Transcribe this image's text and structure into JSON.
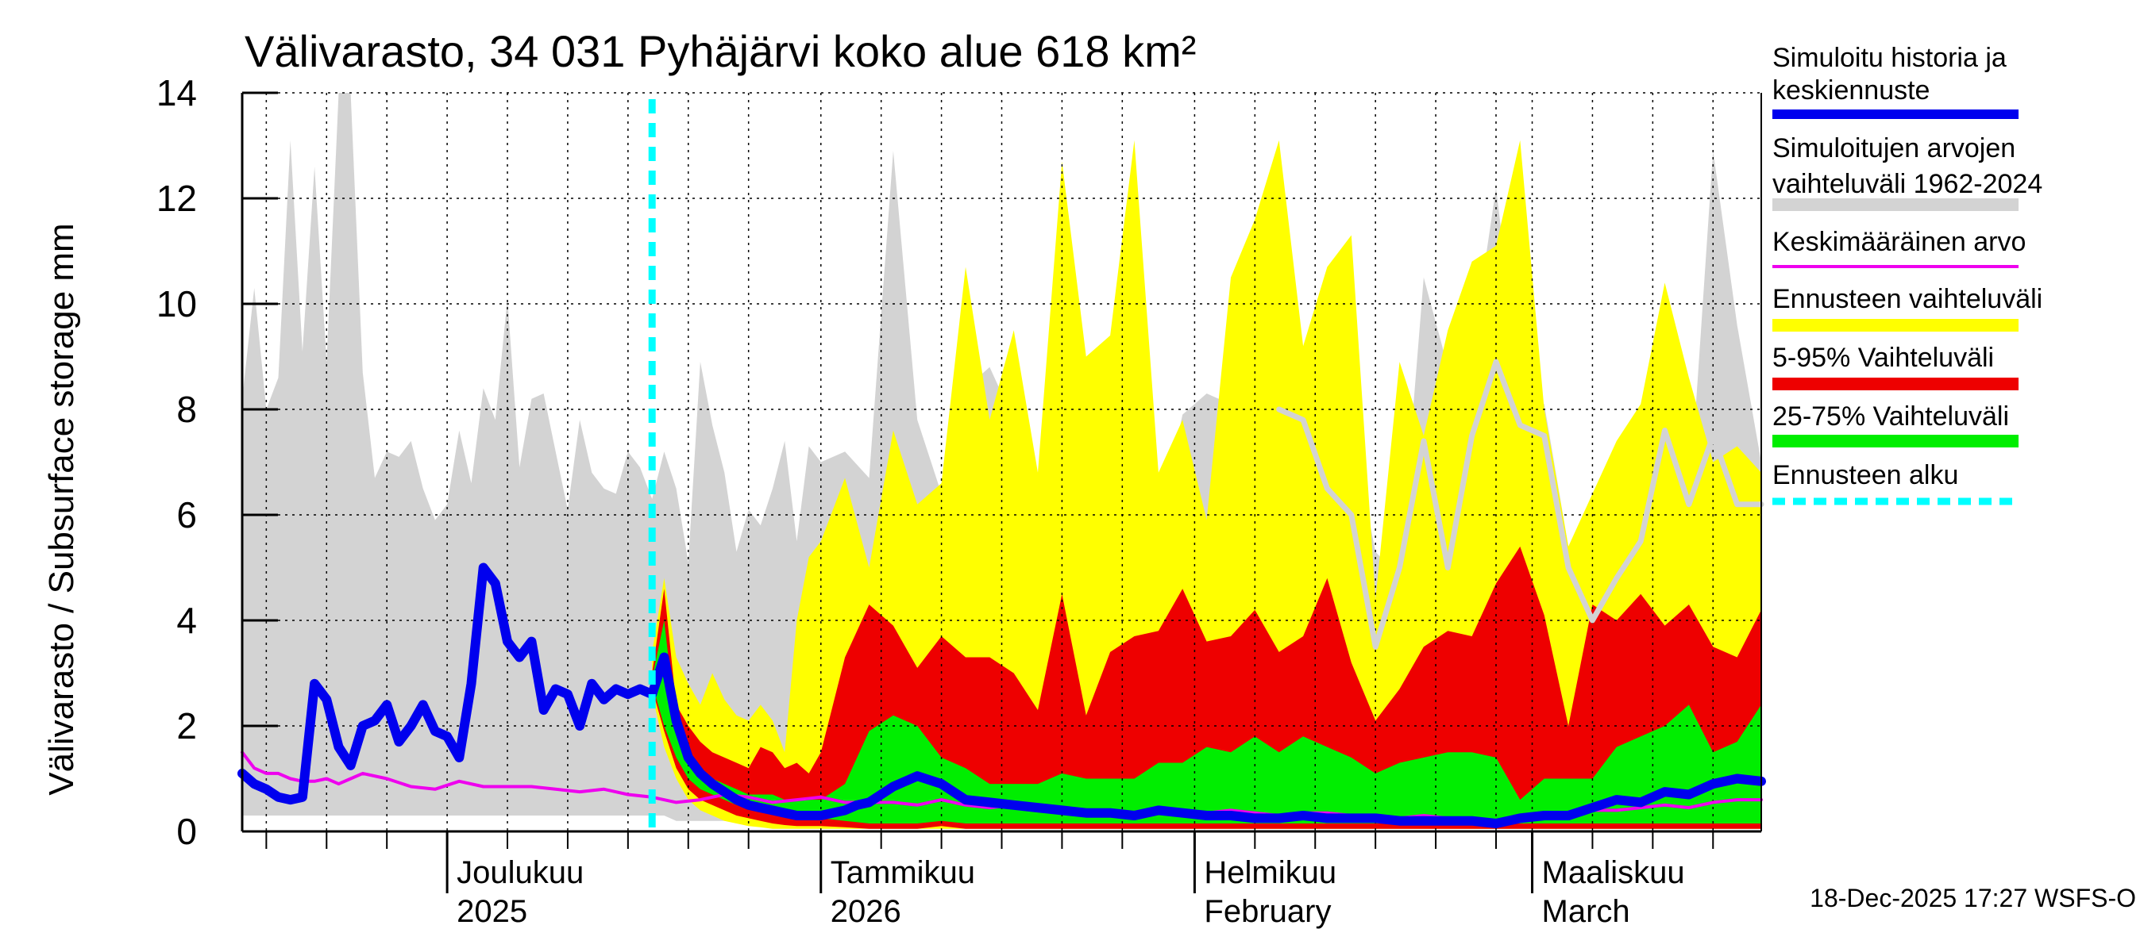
{
  "chart_data": {
    "type": "area",
    "title": "Välivarasto, 34 031 Pyhäjärvi koko alue 618 km²",
    "ylabel": "Välivarasto / Subsurface storage  mm",
    "xlabel": "",
    "ylim": [
      0,
      14
    ],
    "yticks": [
      0,
      2,
      4,
      6,
      8,
      10,
      12,
      14
    ],
    "x_range": [
      0,
      126
    ],
    "x_unit": "days from 2025-11-14",
    "forecast_start_day": 34,
    "grid": "vertical dotted",
    "month_labels": [
      {
        "day": 17,
        "line1": "Joulukuu",
        "line2": "2025"
      },
      {
        "day": 48,
        "line1": "Tammikuu",
        "line2": "2026"
      },
      {
        "day": 79,
        "line1": "Helmikuu",
        "line2": "February"
      },
      {
        "day": 107,
        "line1": "Maaliskuu",
        "line2": "March"
      }
    ],
    "month_boundaries": [
      17,
      48,
      79,
      107
    ],
    "minor_ticks": [
      2,
      7,
      12,
      17,
      22,
      27,
      32,
      37,
      42,
      48,
      53,
      58,
      63,
      68,
      73,
      79,
      84,
      89,
      94,
      99,
      104,
      107,
      112,
      117,
      122
    ],
    "legend": [
      {
        "label": "Simuloitu historia ja",
        "label2": "keskiennuste",
        "color": "#0000ee",
        "kind": "line"
      },
      {
        "label": "Simuloitujen arvojen",
        "label2": "vaihteluväli 1962-2024",
        "color": "#d3d3d3",
        "kind": "band"
      },
      {
        "label": "Keskimääräinen arvo",
        "label2": "",
        "color": "#ee00ee",
        "kind": "line"
      },
      {
        "label": "Ennusteen vaihteluväli",
        "label2": "",
        "color": "#ffff00",
        "kind": "band"
      },
      {
        "label": "5-95% Vaihteluväli",
        "label2": "",
        "color": "#ee0000",
        "kind": "band"
      },
      {
        "label": "25-75% Vaihteluväli",
        "label2": "",
        "color": "#00ee00",
        "kind": "band"
      },
      {
        "label": "Ennusteen alku",
        "label2": "",
        "color": "#00ffff",
        "kind": "dash"
      }
    ],
    "series": {
      "hist_range": {
        "color": "#d3d3d3",
        "x": [
          0,
          1,
          2,
          3,
          4,
          5,
          6,
          7,
          8,
          9,
          10,
          11,
          12,
          13,
          14,
          15,
          16,
          17,
          18,
          19,
          20,
          21,
          22,
          23,
          24,
          25,
          26,
          27,
          28,
          29,
          30,
          31,
          32,
          33,
          34,
          35,
          36,
          37,
          38,
          39,
          40,
          41,
          42,
          43,
          44,
          45,
          46,
          47,
          48,
          50,
          52,
          54,
          56,
          58,
          60,
          62,
          64,
          66,
          68,
          70,
          72,
          74,
          76,
          78,
          80,
          82,
          84,
          86,
          88,
          90,
          92,
          94,
          96,
          98,
          100,
          102,
          104,
          106,
          108,
          110,
          112,
          114,
          116,
          118,
          120,
          122,
          124,
          126
        ],
        "upper": [
          8.2,
          10.3,
          8,
          8.6,
          13.1,
          9.1,
          12.6,
          8.9,
          14,
          14,
          8.7,
          6.7,
          7.2,
          7.1,
          7.4,
          6.5,
          5.9,
          6.2,
          7.6,
          6.6,
          8.4,
          7.8,
          10.1,
          6.9,
          8.2,
          8.3,
          7.2,
          6.1,
          7.8,
          6.8,
          6.5,
          6.4,
          7.2,
          6.9,
          6.3,
          7.2,
          6.5,
          5.1,
          8.9,
          7.7,
          6.8,
          5.3,
          6.1,
          5.8,
          6.5,
          7.4,
          5.5,
          7.3,
          7.0,
          7.2,
          6.7,
          12.9,
          7.8,
          6.4,
          8.4,
          8.8,
          7.8,
          6.5,
          7.0,
          6.5,
          5.4,
          6.2,
          5.8,
          7.9,
          8.3,
          8.1,
          6.1,
          3.8,
          4.9,
          7.4,
          7.6,
          5.3,
          4.8,
          10.5,
          8.8,
          9.1,
          12.2,
          8.4,
          8.1,
          5.4,
          4.8,
          5.6,
          6.8,
          8.4,
          6.1,
          12.9,
          9.6,
          7.0
        ],
        "lower": [
          0.3,
          0.3,
          0.3,
          0.3,
          0.3,
          0.3,
          0.3,
          0.3,
          0.3,
          0.3,
          0.3,
          0.3,
          0.3,
          0.3,
          0.3,
          0.3,
          0.3,
          0.3,
          0.3,
          0.3,
          0.3,
          0.3,
          0.3,
          0.3,
          0.3,
          0.3,
          0.3,
          0.3,
          0.3,
          0.3,
          0.3,
          0.3,
          0.3,
          0.3,
          0.3,
          0.3,
          0.2,
          0.2,
          0.2,
          0.2,
          0.2,
          0.2,
          0.2,
          0.1,
          0.1,
          0.1,
          0.1,
          0.1,
          0.1,
          0.05,
          0.05,
          0.05,
          0.05,
          0.05,
          0.05,
          0.05,
          0.05,
          0.05,
          0.05,
          0.05,
          0.05,
          0.05,
          0.05,
          0.05,
          0.05,
          0.05,
          0.05,
          0.05,
          0.05,
          0.05,
          0.05,
          0.05,
          0.05,
          0.05,
          0.05,
          0.05,
          0.05,
          0.05,
          0.05,
          0.05,
          0.05,
          0.05,
          0.05,
          0.05,
          0.05,
          0.05,
          0.05,
          0.05
        ]
      },
      "hist_median": {
        "color": "#d3d3d3",
        "x": [
          86,
          88,
          90,
          92,
          94,
          96,
          98,
          100,
          102,
          104,
          106,
          108,
          110,
          112,
          114,
          116,
          118,
          120,
          122,
          124,
          126
        ],
        "values": [
          8.0,
          7.8,
          6.5,
          6.0,
          3.5,
          5.0,
          7.4,
          5.0,
          7.5,
          8.9,
          7.7,
          7.5,
          5.0,
          4.0,
          4.8,
          5.5,
          7.6,
          6.2,
          7.5,
          6.2,
          6.2
        ]
      },
      "forecast_range": {
        "color": "#ffff00",
        "x": [
          34,
          35,
          36,
          37,
          38,
          39,
          40,
          41,
          42,
          43,
          44,
          45,
          46,
          47,
          48,
          50,
          52,
          54,
          56,
          58,
          60,
          62,
          64,
          66,
          68,
          70,
          72,
          74,
          76,
          78,
          80,
          82,
          84,
          86,
          88,
          90,
          92,
          94,
          96,
          98,
          100,
          102,
          104,
          106,
          108,
          110,
          112,
          114,
          116,
          118,
          120,
          122,
          124,
          126
        ],
        "upper": [
          3.4,
          4.8,
          3.3,
          2.8,
          2.4,
          3.0,
          2.5,
          2.2,
          2.1,
          2.4,
          2.1,
          1.5,
          4.0,
          5.2,
          5.5,
          6.7,
          5.0,
          7.6,
          6.2,
          6.6,
          10.7,
          7.8,
          9.5,
          6.8,
          12.7,
          9.0,
          9.4,
          13.1,
          6.8,
          7.8,
          5.9,
          10.5,
          11.6,
          13.1,
          9.2,
          10.7,
          11.3,
          4.4,
          8.9,
          7.5,
          9.5,
          10.8,
          11.1,
          13.1,
          8.0,
          5.4,
          6.4,
          7.4,
          8.1,
          10.4,
          8.6,
          7.0,
          7.3,
          6.8
        ],
        "lower": [
          2.6,
          1.6,
          1.0,
          0.6,
          0.4,
          0.3,
          0.2,
          0.15,
          0.1,
          0.08,
          0.05,
          0.05,
          0.05,
          0.05,
          0.05,
          0.05,
          0.05,
          0.05,
          0.05,
          0.05,
          0.05,
          0.05,
          0.05,
          0.05,
          0.05,
          0.05,
          0.05,
          0.05,
          0.05,
          0.05,
          0.05,
          0.05,
          0.05,
          0.05,
          0.05,
          0.05,
          0.05,
          0.05,
          0.05,
          0.05,
          0.05,
          0.05,
          0.05,
          0.05,
          0.05,
          0.05,
          0.05,
          0.05,
          0.05,
          0.05,
          0.05,
          0.05,
          0.05,
          0.05
        ]
      },
      "p5_95": {
        "color": "#ee0000",
        "x": [
          34,
          35,
          36,
          37,
          38,
          39,
          40,
          41,
          42,
          43,
          44,
          45,
          46,
          47,
          48,
          50,
          52,
          54,
          56,
          58,
          60,
          62,
          64,
          66,
          68,
          70,
          72,
          74,
          76,
          78,
          80,
          82,
          84,
          86,
          88,
          90,
          92,
          94,
          96,
          98,
          100,
          102,
          104,
          106,
          108,
          110,
          112,
          114,
          116,
          118,
          120,
          122,
          124,
          126
        ],
        "upper": [
          3.0,
          4.6,
          2.4,
          2.0,
          1.7,
          1.5,
          1.4,
          1.3,
          1.2,
          1.6,
          1.5,
          1.2,
          1.3,
          1.1,
          1.5,
          3.3,
          4.3,
          3.9,
          3.1,
          3.7,
          3.3,
          3.3,
          3.0,
          2.3,
          4.5,
          2.2,
          3.4,
          3.7,
          3.8,
          4.6,
          3.6,
          3.7,
          4.2,
          3.4,
          3.7,
          4.8,
          3.2,
          2.1,
          2.7,
          3.5,
          3.8,
          3.7,
          4.7,
          5.4,
          4.1,
          2.0,
          4.3,
          4.0,
          4.5,
          3.9,
          4.3,
          3.5,
          3.3,
          4.2
        ],
        "lower": [
          2.7,
          1.9,
          1.2,
          0.8,
          0.6,
          0.5,
          0.4,
          0.3,
          0.25,
          0.2,
          0.15,
          0.12,
          0.1,
          0.1,
          0.1,
          0.08,
          0.05,
          0.05,
          0.05,
          0.1,
          0.05,
          0.05,
          0.05,
          0.05,
          0.05,
          0.05,
          0.05,
          0.05,
          0.05,
          0.05,
          0.05,
          0.05,
          0.05,
          0.05,
          0.05,
          0.05,
          0.05,
          0.05,
          0.05,
          0.05,
          0.05,
          0.05,
          0.05,
          0.05,
          0.05,
          0.05,
          0.05,
          0.05,
          0.05,
          0.05,
          0.05,
          0.05,
          0.05,
          0.05
        ]
      },
      "p25_75": {
        "color": "#00ee00",
        "x": [
          34,
          35,
          36,
          37,
          38,
          39,
          40,
          41,
          42,
          43,
          44,
          45,
          46,
          47,
          48,
          50,
          52,
          54,
          56,
          58,
          60,
          62,
          64,
          66,
          68,
          70,
          72,
          74,
          76,
          78,
          80,
          82,
          84,
          86,
          88,
          90,
          92,
          94,
          96,
          98,
          100,
          102,
          104,
          106,
          108,
          110,
          112,
          114,
          116,
          118,
          120,
          122,
          124,
          126
        ],
        "upper": [
          2.9,
          4.0,
          2.0,
          1.5,
          1.2,
          1.0,
          0.9,
          0.8,
          0.7,
          0.7,
          0.7,
          0.6,
          0.6,
          0.6,
          0.6,
          0.9,
          1.9,
          2.2,
          2.0,
          1.4,
          1.2,
          0.9,
          0.9,
          0.9,
          1.1,
          1.0,
          1.0,
          1.0,
          1.3,
          1.3,
          1.6,
          1.5,
          1.8,
          1.5,
          1.8,
          1.6,
          1.4,
          1.1,
          1.3,
          1.4,
          1.5,
          1.5,
          1.4,
          0.6,
          1.0,
          1.0,
          1.0,
          1.6,
          1.8,
          2.0,
          2.4,
          1.5,
          1.7,
          2.4
        ],
        "lower": [
          2.8,
          2.0,
          1.4,
          1.0,
          0.8,
          0.7,
          0.6,
          0.5,
          0.45,
          0.4,
          0.35,
          0.3,
          0.3,
          0.25,
          0.25,
          0.2,
          0.15,
          0.15,
          0.15,
          0.2,
          0.15,
          0.15,
          0.15,
          0.15,
          0.15,
          0.15,
          0.15,
          0.15,
          0.15,
          0.15,
          0.15,
          0.15,
          0.15,
          0.15,
          0.15,
          0.15,
          0.15,
          0.15,
          0.15,
          0.15,
          0.15,
          0.15,
          0.15,
          0.15,
          0.15,
          0.15,
          0.15,
          0.15,
          0.15,
          0.15,
          0.15,
          0.15,
          0.15,
          0.15
        ]
      },
      "mean": {
        "color": "#ee00ee",
        "x": [
          0,
          1,
          2,
          3,
          4,
          5,
          6,
          7,
          8,
          9,
          10,
          12,
          14,
          16,
          18,
          20,
          22,
          24,
          26,
          28,
          30,
          32,
          34,
          36,
          38,
          40,
          42,
          44,
          46,
          48,
          50,
          52,
          54,
          56,
          58,
          60,
          62,
          64,
          66,
          68,
          70,
          72,
          74,
          76,
          78,
          80,
          82,
          84,
          86,
          88,
          90,
          92,
          94,
          96,
          98,
          100,
          102,
          104,
          106,
          108,
          110,
          112,
          114,
          116,
          118,
          120,
          122,
          124,
          126
        ],
        "values": [
          1.5,
          1.2,
          1.1,
          1.1,
          1.0,
          0.95,
          0.95,
          1.0,
          0.9,
          1.0,
          1.1,
          1.0,
          0.85,
          0.8,
          0.95,
          0.85,
          0.85,
          0.85,
          0.8,
          0.75,
          0.8,
          0.7,
          0.65,
          0.55,
          0.6,
          0.7,
          0.65,
          0.55,
          0.6,
          0.65,
          0.55,
          0.55,
          0.55,
          0.5,
          0.6,
          0.5,
          0.45,
          0.5,
          0.45,
          0.4,
          0.35,
          0.4,
          0.35,
          0.35,
          0.4,
          0.35,
          0.4,
          0.35,
          0.3,
          0.35,
          0.35,
          0.3,
          0.3,
          0.25,
          0.3,
          0.25,
          0.25,
          0.2,
          0.25,
          0.35,
          0.35,
          0.4,
          0.4,
          0.45,
          0.5,
          0.45,
          0.55,
          0.6,
          0.6
        ]
      },
      "median": {
        "color": "#0000ee",
        "x": [
          0,
          1,
          2,
          3,
          4,
          5,
          6,
          7,
          8,
          9,
          10,
          11,
          12,
          13,
          14,
          15,
          16,
          17,
          18,
          19,
          20,
          21,
          22,
          23,
          24,
          25,
          26,
          27,
          28,
          29,
          30,
          31,
          32,
          33,
          34,
          35,
          36,
          37,
          38,
          39,
          40,
          41,
          42,
          43,
          44,
          45,
          46,
          47,
          48,
          49,
          50,
          51,
          52,
          54,
          56,
          58,
          60,
          62,
          64,
          66,
          68,
          70,
          72,
          74,
          76,
          78,
          80,
          82,
          84,
          86,
          88,
          90,
          92,
          94,
          96,
          98,
          100,
          102,
          104,
          106,
          108,
          110,
          112,
          114,
          116,
          118,
          120,
          122,
          124,
          126
        ],
        "values": [
          1.1,
          0.9,
          0.8,
          0.65,
          0.6,
          0.65,
          2.8,
          2.5,
          1.6,
          1.25,
          2.0,
          2.1,
          2.4,
          1.7,
          2.0,
          2.4,
          1.9,
          1.8,
          1.4,
          2.8,
          5.0,
          4.7,
          3.6,
          3.3,
          3.6,
          2.3,
          2.7,
          2.6,
          2.0,
          2.8,
          2.5,
          2.7,
          2.6,
          2.7,
          2.6,
          3.3,
          2.1,
          1.4,
          1.1,
          0.9,
          0.75,
          0.6,
          0.5,
          0.45,
          0.4,
          0.35,
          0.3,
          0.3,
          0.3,
          0.35,
          0.4,
          0.5,
          0.55,
          0.85,
          1.05,
          0.9,
          0.6,
          0.55,
          0.5,
          0.45,
          0.4,
          0.35,
          0.35,
          0.3,
          0.4,
          0.35,
          0.3,
          0.3,
          0.25,
          0.25,
          0.3,
          0.25,
          0.25,
          0.25,
          0.2,
          0.2,
          0.2,
          0.2,
          0.15,
          0.25,
          0.3,
          0.3,
          0.45,
          0.6,
          0.55,
          0.75,
          0.7,
          0.9,
          1.0,
          0.95
        ]
      }
    }
  },
  "footer": {
    "timestamp": "18-Dec-2025 17:27 WSFS-O"
  }
}
